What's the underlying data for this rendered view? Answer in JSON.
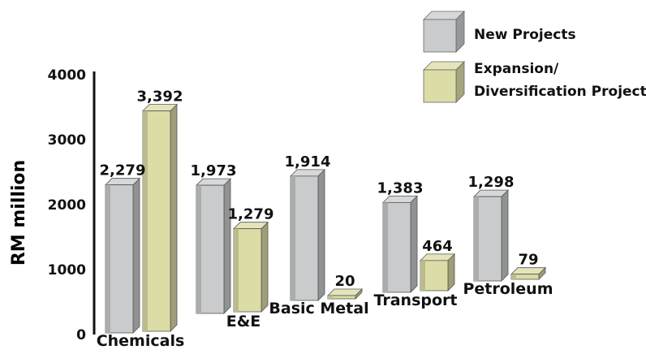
{
  "chart_data": {
    "type": "bar",
    "title": "",
    "xlabel": "",
    "ylabel": "RM million",
    "ylim": [
      0,
      4000
    ],
    "yticks": [
      "0",
      "1000",
      "2000",
      "3000",
      "4000"
    ],
    "categories": [
      "Chemicals",
      "E&E",
      "Basic Metal",
      "Transport",
      "Petroleum"
    ],
    "series": [
      {
        "name": "New Projects",
        "values": [
          2279,
          1973,
          1914,
          1383,
          1298
        ],
        "labels": [
          "2,279",
          "1,973",
          "1,914",
          "1,383",
          "1,298"
        ],
        "color": "#c9cbcc"
      },
      {
        "name": "Expansion/ Diversification Projects",
        "legend_lines": [
          "Expansion/",
          "Diversification Projects"
        ],
        "values": [
          3392,
          1279,
          20,
          464,
          79
        ],
        "labels": [
          "3,392",
          "1,279",
          "20",
          "464",
          "79"
        ],
        "color": "#dcdca6"
      }
    ],
    "grid": false,
    "legend": "top-right",
    "style": "3d"
  }
}
